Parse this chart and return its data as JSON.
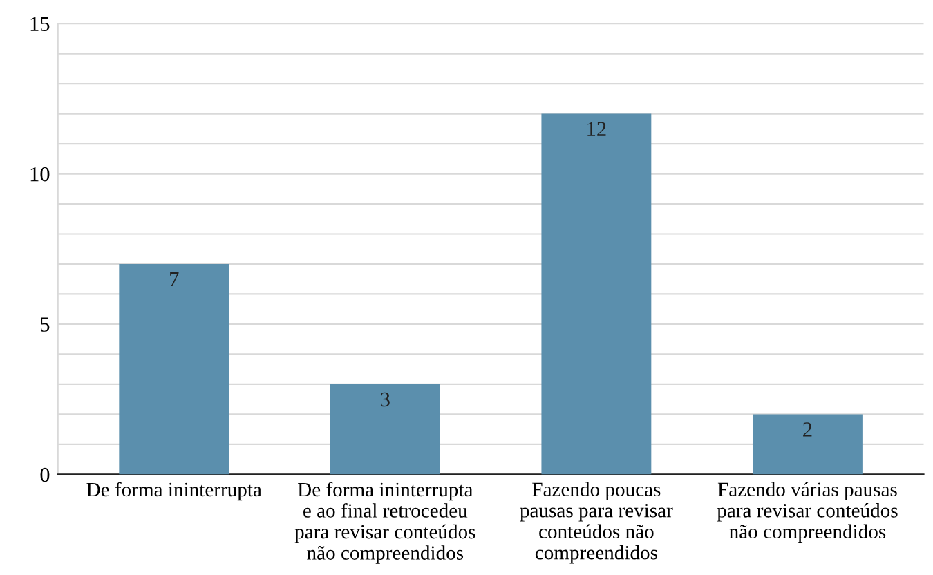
{
  "chart_data": {
    "type": "bar",
    "categories": [
      "De forma ininterrupta",
      "De forma ininterrupta\ne ao final retrocedeu\npara revisar conteúdos\nnão compreendidos",
      "Fazendo poucas\npausas para revisar\nconteúdos não\ncompreendidos",
      "Fazendo várias pausas\npara revisar conteúdos\nnão compreendidos"
    ],
    "values": [
      7,
      3,
      12,
      2
    ],
    "color": "#5b8fad",
    "ylim": [
      0,
      15
    ],
    "yticks": [
      0,
      {
        "value": 1,
        "label": null
      },
      {
        "value": 2,
        "label": null
      },
      {
        "value": 3,
        "label": null
      },
      {
        "value": 4,
        "label": null
      },
      5,
      {
        "value": 6,
        "label": null
      },
      {
        "value": 7,
        "label": null
      },
      {
        "value": 8,
        "label": null
      },
      {
        "value": 9,
        "label": null
      },
      10,
      {
        "value": 11,
        "label": null
      },
      {
        "value": 12,
        "label": null
      },
      {
        "value": 13,
        "label": null
      },
      {
        "value": 14,
        "label": null
      },
      15
    ],
    "grid": "y",
    "data_labels": true
  }
}
